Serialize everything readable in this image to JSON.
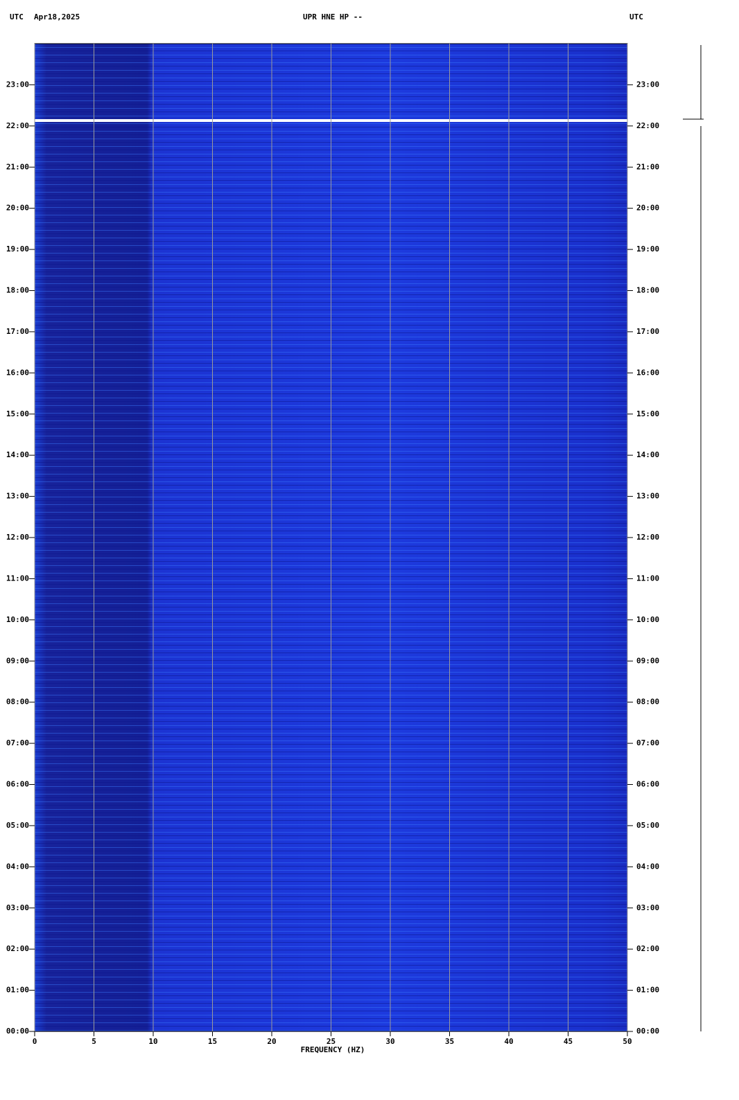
{
  "chart_data": {
    "type": "spectrogram",
    "header_left": "UTC",
    "date": "Apr18,2025",
    "title": "UPR HNE HP --",
    "header_right": "UTC",
    "xlabel": "FREQUENCY (HZ)",
    "xlim": [
      0,
      50
    ],
    "xticks": [
      0,
      5,
      10,
      15,
      20,
      25,
      30,
      35,
      40,
      45,
      50
    ],
    "ylim": [
      0,
      24
    ],
    "yticks": [
      {
        "value": 0,
        "label": "00:00"
      },
      {
        "value": 1,
        "label": "01:00"
      },
      {
        "value": 2,
        "label": "02:00"
      },
      {
        "value": 3,
        "label": "03:00"
      },
      {
        "value": 4,
        "label": "04:00"
      },
      {
        "value": 5,
        "label": "05:00"
      },
      {
        "value": 6,
        "label": "06:00"
      },
      {
        "value": 7,
        "label": "07:00"
      },
      {
        "value": 8,
        "label": "08:00"
      },
      {
        "value": 9,
        "label": "09:00"
      },
      {
        "value": 10,
        "label": "10:00"
      },
      {
        "value": 11,
        "label": "11:00"
      },
      {
        "value": 12,
        "label": "12:00"
      },
      {
        "value": 13,
        "label": "13:00"
      },
      {
        "value": 14,
        "label": "14:00"
      },
      {
        "value": 15,
        "label": "15:00"
      },
      {
        "value": 16,
        "label": "16:00"
      },
      {
        "value": 17,
        "label": "17:00"
      },
      {
        "value": 18,
        "label": "18:00"
      },
      {
        "value": 19,
        "label": "19:00"
      },
      {
        "value": 20,
        "label": "20:00"
      },
      {
        "value": 21,
        "label": "21:00"
      },
      {
        "value": 22,
        "label": "22:00"
      },
      {
        "value": 23,
        "label": "23:00"
      }
    ],
    "grid": true
  }
}
